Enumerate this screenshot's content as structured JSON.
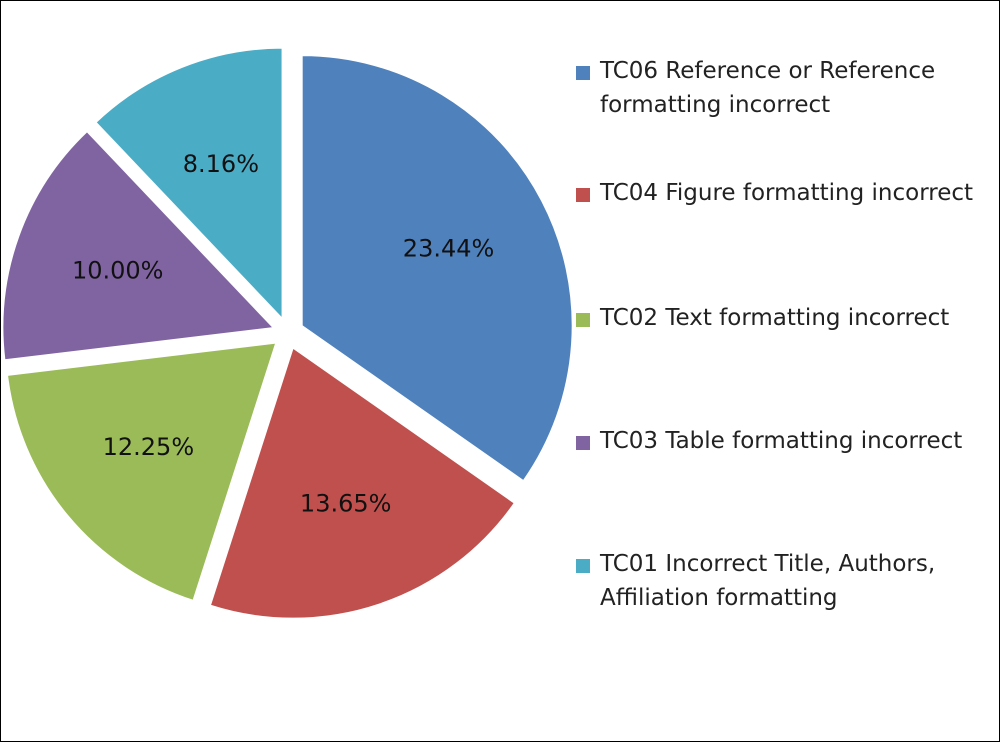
{
  "chart_data": {
    "type": "pie",
    "slices": [
      {
        "label": "TC06 Reference or Reference\nformatting incorrect",
        "value": 23.44,
        "display": "23.44%",
        "color": "#4F81BD"
      },
      {
        "label": "TC04 Figure formatting incorrect",
        "value": 13.65,
        "display": "13.65%",
        "color": "#C0504D"
      },
      {
        "label": "TC02 Text formatting incorrect",
        "value": 12.25,
        "display": "12.25%",
        "color": "#9BBB59"
      },
      {
        "label": "TC03 Table formatting incorrect",
        "value": 10.0,
        "display": "10.00%",
        "color": "#8064A2"
      },
      {
        "label": "TC01 Incorrect Title, Authors,\nAffiliation formatting",
        "value": 8.16,
        "display": "8.16%",
        "color": "#4BACC6"
      }
    ],
    "start_angle_deg": 0,
    "direction": "clockwise",
    "exploded": true,
    "legend_position": "right"
  }
}
